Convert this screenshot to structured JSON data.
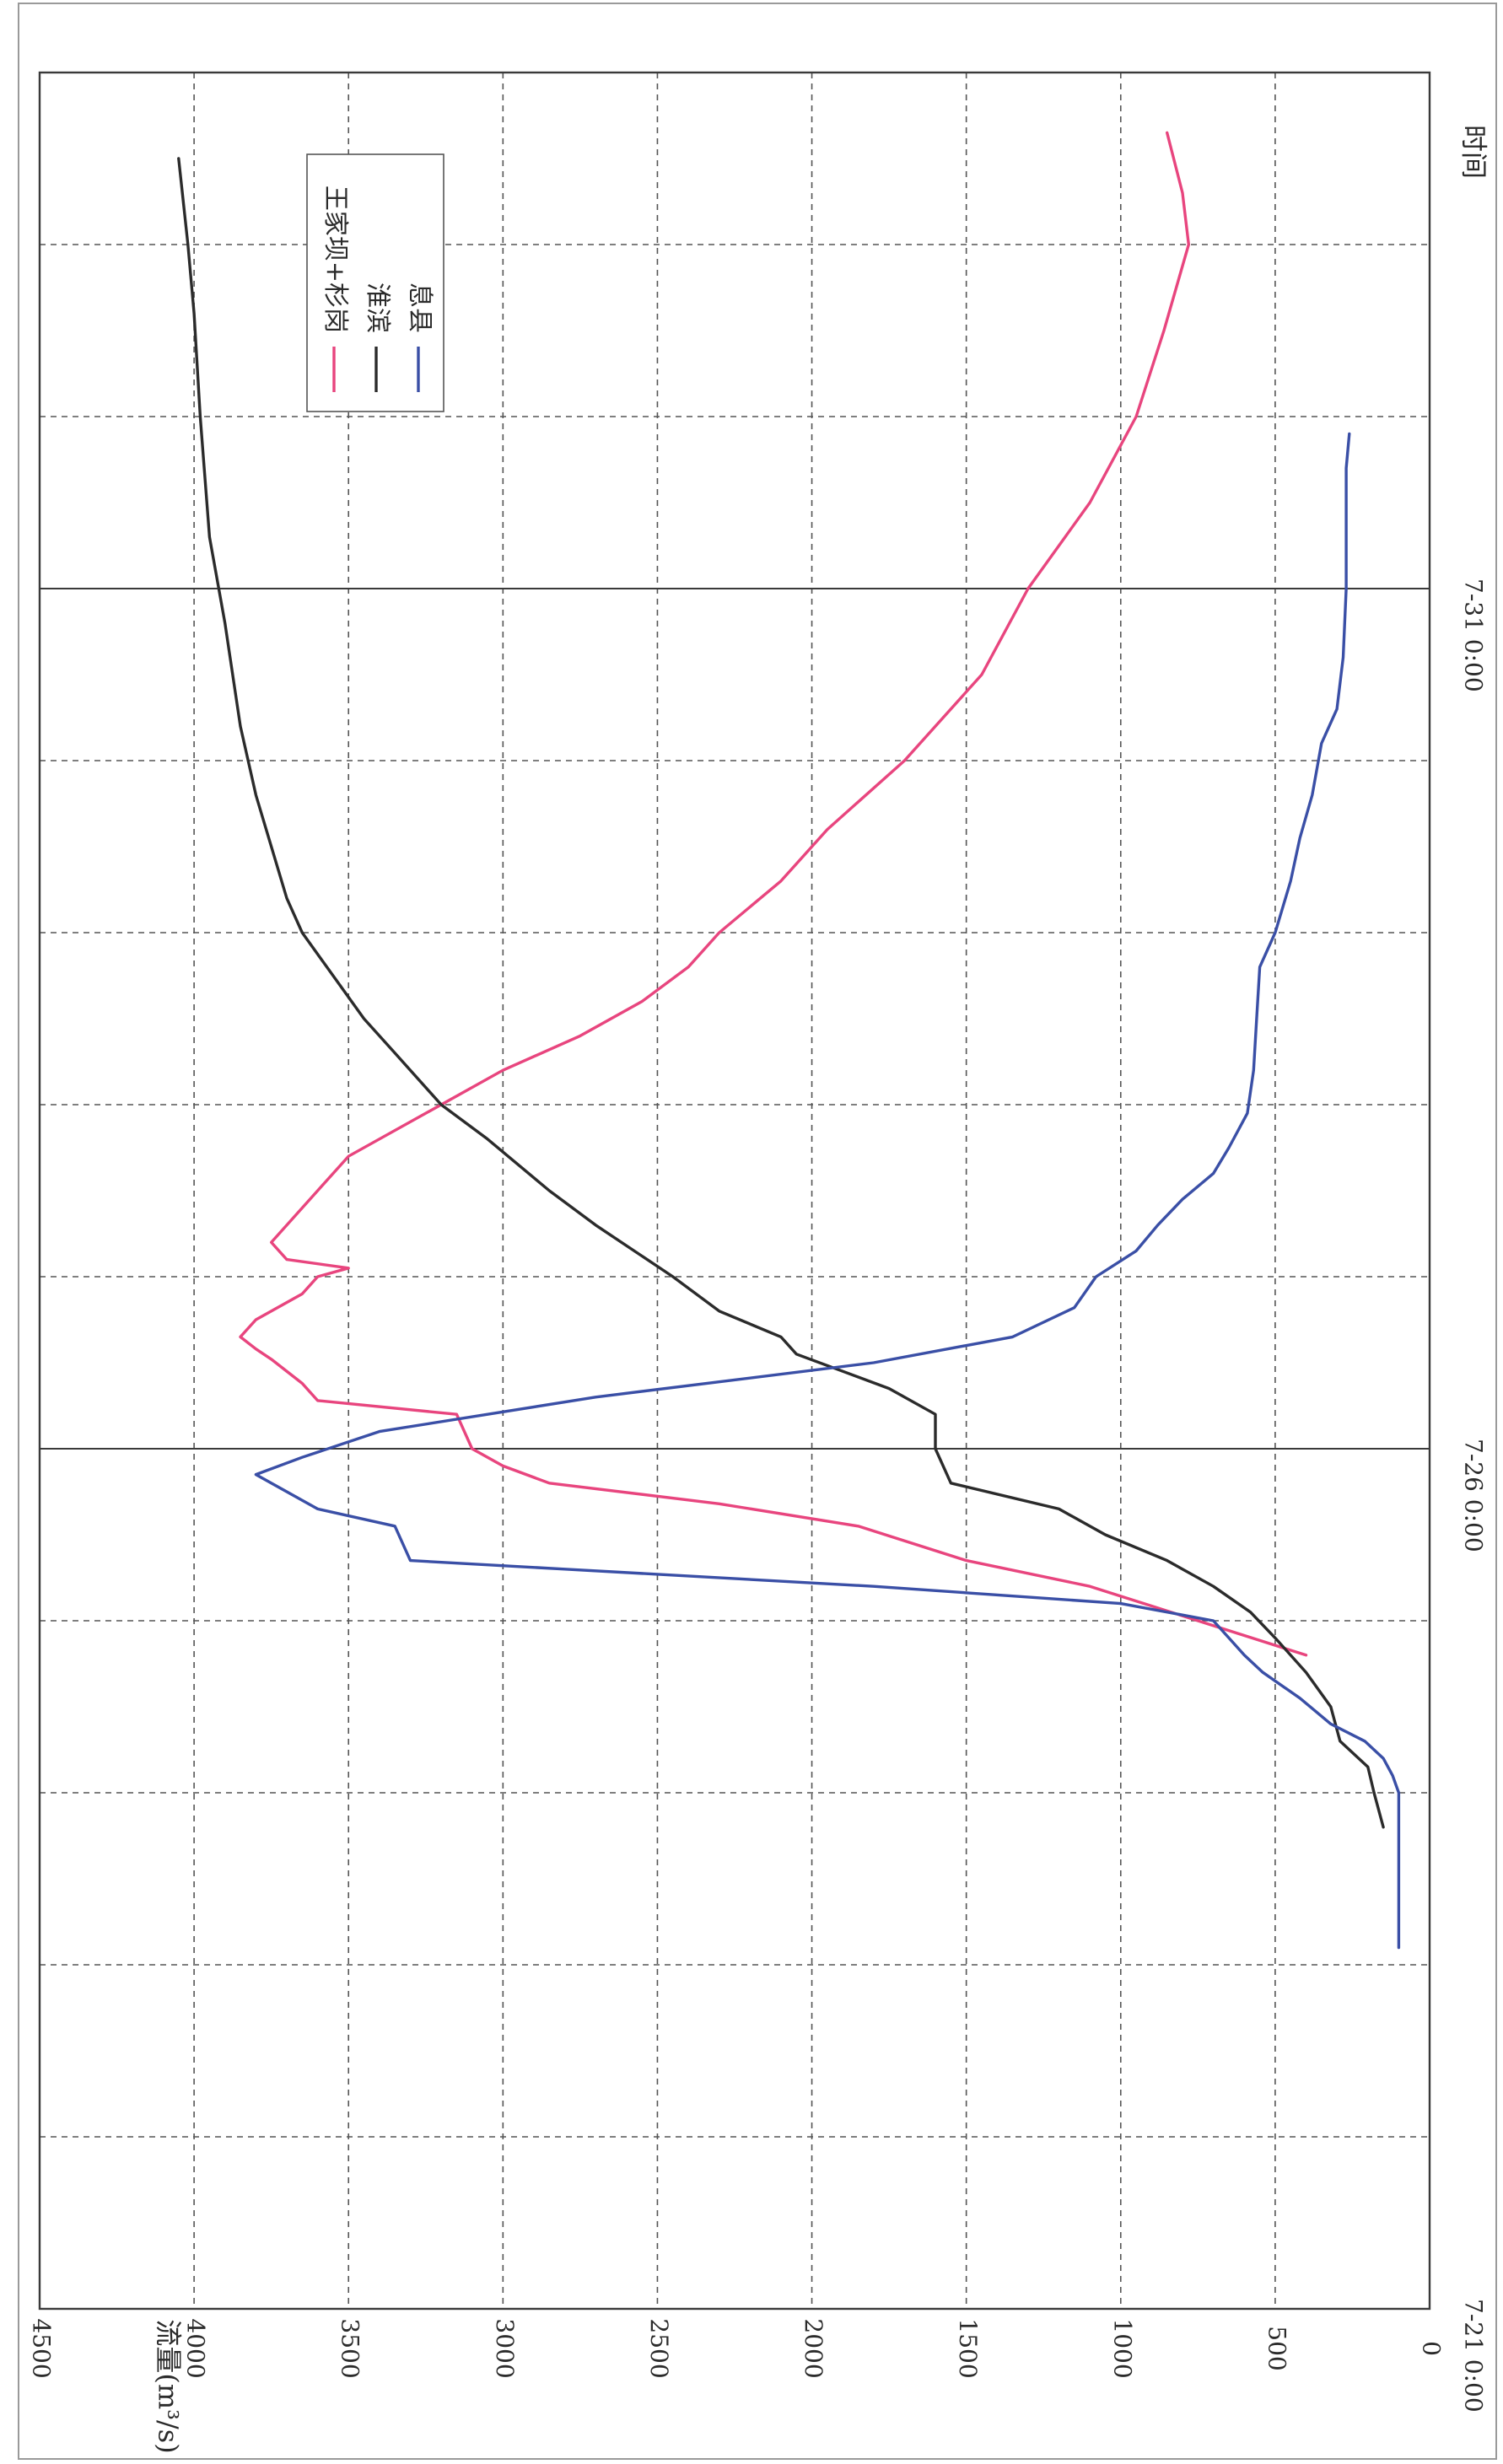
{
  "chart_data": {
    "type": "line",
    "orientation": "rotated-90-clockwise",
    "ylabel": "流量(m³/s)",
    "xlabel": "时间",
    "ylim": [
      0,
      4500
    ],
    "y_ticks": [
      "0",
      "500",
      "1000",
      "1500",
      "2000",
      "2500",
      "3000",
      "3500",
      "4000",
      "4500"
    ],
    "x_range": [
      0,
      13
    ],
    "x_tick_labels": [
      {
        "day": 0,
        "label": "7-21 0:00"
      },
      {
        "day": 5,
        "label": "7-26 0:00"
      },
      {
        "day": 10,
        "label": "7-31 0:00"
      }
    ],
    "x_grid_days": [
      1,
      2,
      3,
      4,
      6,
      7,
      8,
      9,
      11,
      12
    ],
    "grid": true,
    "legend_position": "top-right",
    "series": [
      {
        "name": "王家坝+杉岗",
        "color": "#e8457e",
        "points": [
          [
            3.8,
            400
          ],
          [
            4.0,
            750
          ],
          [
            4.2,
            1100
          ],
          [
            4.35,
            1500
          ],
          [
            4.55,
            1850
          ],
          [
            4.68,
            2300
          ],
          [
            4.8,
            2850
          ],
          [
            4.9,
            3000
          ],
          [
            5.0,
            3100
          ],
          [
            5.2,
            3150
          ],
          [
            5.28,
            3600
          ],
          [
            5.38,
            3650
          ],
          [
            5.52,
            3750
          ],
          [
            5.58,
            3800
          ],
          [
            5.65,
            3850
          ],
          [
            5.75,
            3800
          ],
          [
            5.9,
            3650
          ],
          [
            6.0,
            3600
          ],
          [
            6.05,
            3500
          ],
          [
            6.1,
            3700
          ],
          [
            6.2,
            3750
          ],
          [
            6.5,
            3600
          ],
          [
            6.7,
            3500
          ],
          [
            7.0,
            3200
          ],
          [
            7.2,
            3000
          ],
          [
            7.4,
            2750
          ],
          [
            7.6,
            2550
          ],
          [
            7.8,
            2400
          ],
          [
            8.0,
            2300
          ],
          [
            8.3,
            2100
          ],
          [
            8.6,
            1950
          ],
          [
            9.0,
            1700
          ],
          [
            9.5,
            1450
          ],
          [
            10.0,
            1300
          ],
          [
            10.5,
            1100
          ],
          [
            11.0,
            950
          ],
          [
            11.5,
            860
          ],
          [
            12.0,
            780
          ],
          [
            12.3,
            800
          ],
          [
            12.65,
            850
          ]
        ]
      },
      {
        "name": "淮滨",
        "color": "#2b2b2b",
        "points": [
          [
            2.8,
            150
          ],
          [
            3.0,
            180
          ],
          [
            3.15,
            200
          ],
          [
            3.3,
            290
          ],
          [
            3.5,
            320
          ],
          [
            3.7,
            400
          ],
          [
            3.9,
            500
          ],
          [
            4.05,
            580
          ],
          [
            4.2,
            700
          ],
          [
            4.35,
            850
          ],
          [
            4.5,
            1050
          ],
          [
            4.65,
            1200
          ],
          [
            4.8,
            1550
          ],
          [
            5.0,
            1600
          ],
          [
            5.2,
            1600
          ],
          [
            5.35,
            1750
          ],
          [
            5.45,
            1900
          ],
          [
            5.55,
            2050
          ],
          [
            5.65,
            2100
          ],
          [
            5.8,
            2300
          ],
          [
            6.0,
            2450
          ],
          [
            6.3,
            2700
          ],
          [
            6.5,
            2850
          ],
          [
            6.8,
            3050
          ],
          [
            7.0,
            3200
          ],
          [
            7.3,
            3350
          ],
          [
            7.5,
            3450
          ],
          [
            7.75,
            3550
          ],
          [
            8.0,
            3650
          ],
          [
            8.2,
            3700
          ],
          [
            8.5,
            3750
          ],
          [
            8.8,
            3800
          ],
          [
            9.2,
            3850
          ],
          [
            9.8,
            3900
          ],
          [
            10.3,
            3950
          ],
          [
            11.0,
            3980
          ],
          [
            11.6,
            4000
          ],
          [
            12.0,
            4020
          ],
          [
            12.5,
            4050
          ]
        ]
      },
      {
        "name": "息县",
        "color": "#3a4fa6",
        "points": [
          [
            2.1,
            100
          ],
          [
            2.6,
            100
          ],
          [
            3.0,
            100
          ],
          [
            3.1,
            120
          ],
          [
            3.2,
            150
          ],
          [
            3.3,
            210
          ],
          [
            3.4,
            320
          ],
          [
            3.55,
            420
          ],
          [
            3.7,
            540
          ],
          [
            3.8,
            600
          ],
          [
            3.9,
            650
          ],
          [
            4.0,
            700
          ],
          [
            4.1,
            1000
          ],
          [
            4.2,
            1800
          ],
          [
            4.3,
            2800
          ],
          [
            4.35,
            3300
          ],
          [
            4.55,
            3350
          ],
          [
            4.65,
            3600
          ],
          [
            4.75,
            3700
          ],
          [
            4.85,
            3800
          ],
          [
            4.95,
            3650
          ],
          [
            5.1,
            3400
          ],
          [
            5.3,
            2700
          ],
          [
            5.5,
            1800
          ],
          [
            5.65,
            1350
          ],
          [
            5.82,
            1150
          ],
          [
            6.0,
            1080
          ],
          [
            6.15,
            950
          ],
          [
            6.3,
            880
          ],
          [
            6.45,
            800
          ],
          [
            6.6,
            700
          ],
          [
            6.75,
            650
          ],
          [
            6.95,
            590
          ],
          [
            7.2,
            570
          ],
          [
            7.5,
            560
          ],
          [
            7.8,
            550
          ],
          [
            8.0,
            500
          ],
          [
            8.3,
            450
          ],
          [
            8.55,
            420
          ],
          [
            8.8,
            380
          ],
          [
            9.1,
            350
          ],
          [
            9.3,
            300
          ],
          [
            9.6,
            280
          ],
          [
            10.0,
            270
          ],
          [
            10.7,
            270
          ],
          [
            10.9,
            260
          ]
        ]
      }
    ]
  }
}
